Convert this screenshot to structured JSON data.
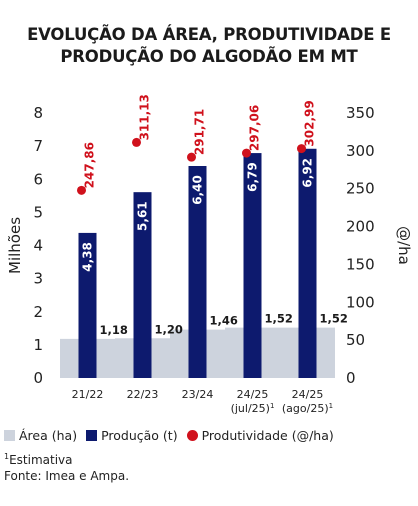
{
  "title": {
    "line1": "EVOLUÇÃO DA ÁREA, PRODUTIVIDADE E",
    "line2": "PRODUÇÃO DO ALGODÃO EM MT"
  },
  "colors": {
    "area": "#cdd3dd",
    "production": "#0d1a6e",
    "productivity": "#d0111c"
  },
  "legend": {
    "area": "Área (ha)",
    "production": "Produção (t)",
    "productivity": "Produtividade (@/ha)"
  },
  "footnote": {
    "marker": "1",
    "text": "Estimativa",
    "source": "Fonte: Imea e Ampa."
  },
  "chart_data": {
    "type": "bar",
    "categories": [
      {
        "line1": "21/22",
        "line2": "",
        "sup": ""
      },
      {
        "line1": "22/23",
        "line2": "",
        "sup": ""
      },
      {
        "line1": "23/24",
        "line2": "",
        "sup": ""
      },
      {
        "line1": "24/25",
        "line2": "(jul/25)",
        "sup": "1"
      },
      {
        "line1": "24/25",
        "line2": "(ago/25)",
        "sup": "1"
      }
    ],
    "series": [
      {
        "name": "Área (ha)",
        "type": "area",
        "axis": "left",
        "values": [
          1.18,
          1.2,
          1.46,
          1.52,
          1.52
        ],
        "labels": [
          "1,18",
          "1,20",
          "1,46",
          "1,52",
          "1,52"
        ]
      },
      {
        "name": "Produção (t)",
        "type": "bar",
        "axis": "left",
        "values": [
          4.38,
          5.61,
          6.4,
          6.79,
          6.92
        ],
        "labels": [
          "4,38",
          "5,61",
          "6,40",
          "6,79",
          "6,92"
        ]
      },
      {
        "name": "Produtividade (@/ha)",
        "type": "scatter",
        "axis": "right",
        "values": [
          247.86,
          311.13,
          291.71,
          297.06,
          302.99
        ],
        "labels": [
          "247,86",
          "311,13",
          "291,71",
          "297,06",
          "302,99"
        ]
      }
    ],
    "ylabel_left": "Milhões",
    "ylabel_right": "@/ha",
    "ylim_left": [
      0,
      8
    ],
    "ylim_right": [
      0,
      350
    ],
    "yticks_left": [
      "0",
      "1",
      "2",
      "3",
      "4",
      "5",
      "6",
      "7",
      "8"
    ],
    "yticks_right": [
      "0",
      "50",
      "100",
      "150",
      "200",
      "250",
      "300",
      "350"
    ],
    "grid": false,
    "legend_position": "bottom"
  }
}
